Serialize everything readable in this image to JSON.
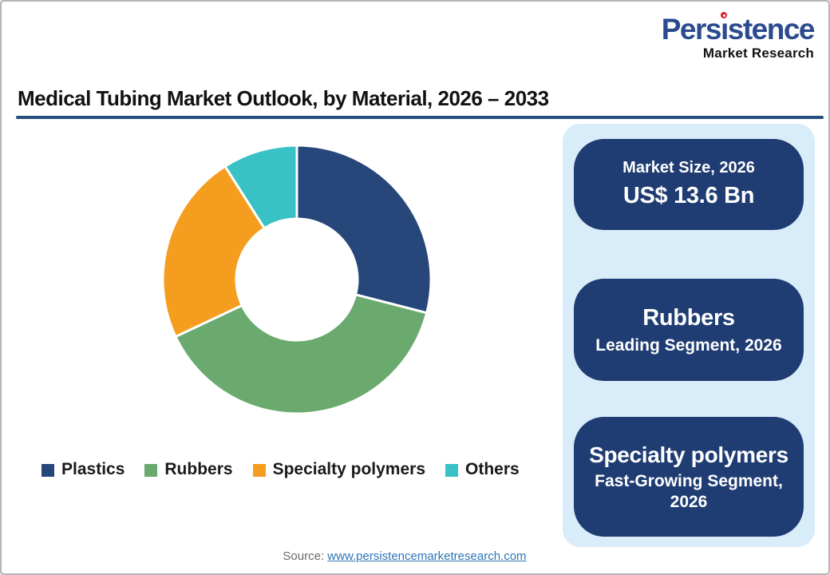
{
  "logo": {
    "name_pre": "Pers",
    "name_i": "ı",
    "name_post": "stence",
    "name_full": "Persistence",
    "tagline": "Market Research",
    "brand_blue": "#2b4b8f",
    "dot_red": "#d6252b"
  },
  "header": {
    "title": "Medical Tubing Market Outlook, by Material, 2026 – 2033",
    "rule_color": "#26507e"
  },
  "chart_data": {
    "type": "pie",
    "donut": true,
    "title": "Medical Tubing Market Outlook, by Material, 2026 – 2033",
    "start_angle_deg": 0,
    "inner_radius_ratio": 0.45,
    "categories": [
      "Plastics",
      "Rubbers",
      "Specialty polymers",
      "Others"
    ],
    "values": [
      29,
      39,
      23,
      9
    ],
    "unit": "% share (estimated from arc angles)",
    "colors": [
      "#27477b",
      "#6baa6e",
      "#f59d1e",
      "#39c2c6"
    ],
    "legend_position": "bottom",
    "slice_gap_color": "#ffffff"
  },
  "sidebar": {
    "panel_bg": "#d9ecf9",
    "card_bg": "#1f3d72",
    "cards": [
      {
        "line1": "Market Size, 2026",
        "line2": "US$ 13.6 Bn"
      },
      {
        "line1": "Rubbers",
        "line2": "Leading Segment, 2026"
      },
      {
        "line1": "Specialty polymers",
        "line2": "Fast-Growing Segment, 2026"
      }
    ]
  },
  "footer": {
    "source_label": "Source:",
    "source_link": "www.persistencemarketresearch.com"
  }
}
